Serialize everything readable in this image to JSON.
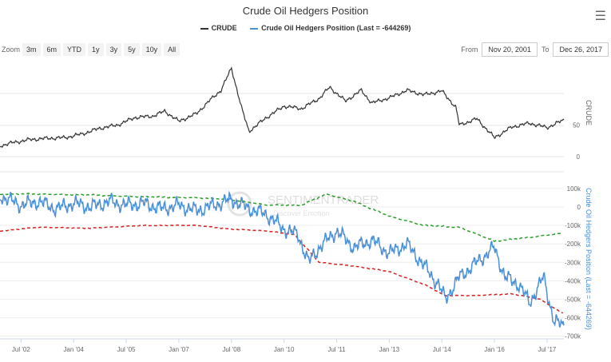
{
  "header": {
    "title": "Crude Oil Hedgers Position",
    "menu_icon": "hamburger-icon"
  },
  "legend": [
    {
      "label": "CRUDE",
      "color": "#333333"
    },
    {
      "label": "Crude Oil Hedgers Position (Last = -644269)",
      "color": "#4a90d9"
    }
  ],
  "zoom": {
    "label": "Zoom",
    "buttons": [
      "3m",
      "6m",
      "YTD",
      "1y",
      "3y",
      "5y",
      "10y",
      "All"
    ]
  },
  "range": {
    "from_label": "From",
    "from": "Nov 20, 2001",
    "to_label": "To",
    "to": "Dec 26, 2017"
  },
  "watermark": {
    "name": "SENTIMENTRADER",
    "tag": "Discover Emotion"
  },
  "chart_data": [
    {
      "type": "line",
      "name": "CRUDE",
      "axis_title": "CRUDE",
      "yticks": [
        "50",
        "0"
      ],
      "ytick_values": [
        50,
        0
      ],
      "ylim": [
        0,
        150
      ],
      "color": "#333333",
      "x": [
        2001.9,
        2002.25,
        2002.75,
        2003.25,
        2003.75,
        2004.25,
        2004.75,
        2005.25,
        2005.75,
        2006.25,
        2006.6,
        2007.0,
        2007.5,
        2007.9,
        2008.2,
        2008.5,
        2008.8,
        2009.0,
        2009.5,
        2010.0,
        2010.5,
        2011.0,
        2011.3,
        2011.75,
        2012.2,
        2012.5,
        2013.0,
        2013.5,
        2014.0,
        2014.5,
        2014.9,
        2015.0,
        2015.5,
        2016.0,
        2016.5,
        2017.0,
        2017.5,
        2017.98
      ],
      "y": [
        17,
        22,
        27,
        29,
        30,
        36,
        45,
        50,
        62,
        64,
        72,
        56,
        68,
        90,
        105,
        140,
        75,
        40,
        62,
        80,
        76,
        92,
        110,
        88,
        105,
        85,
        93,
        105,
        98,
        104,
        78,
        50,
        60,
        30,
        47,
        53,
        46,
        58
      ]
    },
    {
      "type": "line",
      "name": "Crude Oil Hedgers Position",
      "axis_title": "Crude Oil Hedgers Position (Last = -644269)",
      "yticks": [
        "100k",
        "0",
        "-100k",
        "-200k",
        "-300k",
        "-400k",
        "-500k",
        "-600k",
        "-700k"
      ],
      "ytick_values": [
        100000,
        0,
        -100000,
        -200000,
        -300000,
        -400000,
        -500000,
        -600000,
        -700000
      ],
      "ylim": [
        -700000,
        100000
      ],
      "color": "#4a90d9",
      "x": [
        2001.9,
        2002.5,
        2003.0,
        2003.5,
        2004.0,
        2004.5,
        2005.0,
        2005.5,
        2006.0,
        2006.5,
        2007.0,
        2007.5,
        2008.0,
        2008.5,
        2009.0,
        2009.5,
        2010.0,
        2010.4,
        2010.7,
        2011.0,
        2011.5,
        2012.0,
        2012.5,
        2013.0,
        2013.5,
        2014.0,
        2014.4,
        2014.6,
        2015.0,
        2015.5,
        2016.0,
        2016.3,
        2016.7,
        2017.0,
        2017.4,
        2017.7,
        2017.98
      ],
      "y": [
        60000,
        10000,
        30000,
        -10000,
        20000,
        0,
        30000,
        10000,
        20000,
        -10000,
        10000,
        -20000,
        10000,
        40000,
        -10000,
        -40000,
        -120000,
        -150000,
        -300000,
        -220000,
        -130000,
        -220000,
        -180000,
        -250000,
        -200000,
        -320000,
        -420000,
        -500000,
        -380000,
        -300000,
        -220000,
        -380000,
        -420000,
        -520000,
        -380000,
        -620000,
        -644269
      ]
    },
    {
      "type": "line",
      "name": "Upper band",
      "color": "#2a9d2a",
      "dashed": true,
      "x": [
        2001.9,
        2003,
        2004.5,
        2006,
        2007.5,
        2008.5,
        2009.5,
        2010.5,
        2011.2,
        2012,
        2013,
        2014,
        2015,
        2016,
        2017,
        2017.98
      ],
      "y": [
        70000,
        70000,
        65000,
        55000,
        50000,
        40000,
        10000,
        10000,
        70000,
        30000,
        -50000,
        -100000,
        -110000,
        -185000,
        -165000,
        -140000
      ]
    },
    {
      "type": "line",
      "name": "Lower band",
      "color": "#d62020",
      "dashed": true,
      "x": [
        2001.9,
        2003,
        2004.5,
        2006,
        2007.5,
        2008.5,
        2009.5,
        2010.3,
        2011,
        2012,
        2013,
        2014,
        2014.6,
        2015.5,
        2016.5,
        2017.3,
        2017.98
      ],
      "y": [
        -130000,
        -110000,
        -115000,
        -100000,
        -100000,
        -120000,
        -130000,
        -150000,
        -300000,
        -320000,
        -350000,
        -420000,
        -480000,
        -480000,
        -470000,
        -500000,
        -580000
      ]
    }
  ],
  "xaxis": {
    "labels": [
      "Jul '02",
      "Jan '04",
      "Jul '05",
      "Jan '07",
      "Jul '08",
      "Jan '10",
      "Jul '11",
      "Jan '13",
      "Jul '14",
      "Jan '16",
      "Jul '17"
    ],
    "values": [
      2002.5,
      2004.0,
      2005.5,
      2007.0,
      2008.5,
      2010.0,
      2011.5,
      2013.0,
      2014.5,
      2016.0,
      2017.5
    ]
  }
}
